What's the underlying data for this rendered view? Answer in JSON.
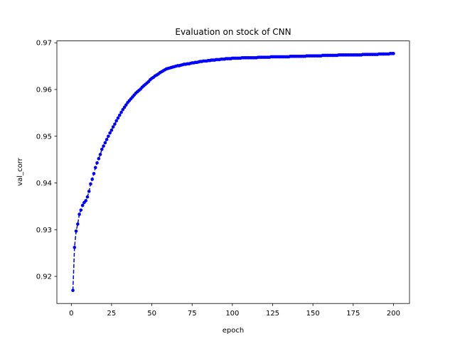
{
  "chart_data": {
    "type": "line",
    "title": "Evaluation on stock of CNN",
    "xlabel": "epoch",
    "ylabel": "val_corr",
    "x": [
      1,
      2,
      3,
      4,
      5,
      6,
      7,
      8,
      9,
      10,
      11,
      12,
      13,
      14,
      15,
      16,
      17,
      18,
      19,
      20,
      21,
      22,
      23,
      24,
      25,
      26,
      27,
      28,
      29,
      30,
      31,
      32,
      33,
      34,
      35,
      36,
      37,
      38,
      39,
      40,
      41,
      42,
      43,
      44,
      45,
      46,
      47,
      48,
      49,
      50,
      51,
      52,
      53,
      54,
      55,
      56,
      57,
      58,
      59,
      60,
      61,
      62,
      63,
      64,
      65,
      66,
      67,
      68,
      69,
      70,
      71,
      72,
      73,
      74,
      75,
      76,
      77,
      78,
      79,
      80,
      81,
      82,
      83,
      84,
      85,
      86,
      87,
      88,
      89,
      90,
      91,
      92,
      93,
      94,
      95,
      96,
      97,
      98,
      99,
      100,
      101,
      102,
      103,
      104,
      105,
      106,
      107,
      108,
      109,
      110,
      111,
      112,
      113,
      114,
      115,
      116,
      117,
      118,
      119,
      120,
      121,
      122,
      123,
      124,
      125,
      126,
      127,
      128,
      129,
      130,
      131,
      132,
      133,
      134,
      135,
      136,
      137,
      138,
      139,
      140,
      141,
      142,
      143,
      144,
      145,
      146,
      147,
      148,
      149,
      150,
      151,
      152,
      153,
      154,
      155,
      156,
      157,
      158,
      159,
      160,
      161,
      162,
      163,
      164,
      165,
      166,
      167,
      168,
      169,
      170,
      171,
      172,
      173,
      174,
      175,
      176,
      177,
      178,
      179,
      180,
      181,
      182,
      183,
      184,
      185,
      186,
      187,
      188,
      189,
      190,
      191,
      192,
      193,
      194,
      195,
      196,
      197,
      198,
      199,
      200
    ],
    "series": [
      {
        "color": "#0000ff",
        "linestyle": "dashed",
        "marker": "o",
        "values": [
          0.917,
          0.9262,
          0.9297,
          0.9312,
          0.9333,
          0.9342,
          0.9352,
          0.9358,
          0.9362,
          0.937,
          0.9382,
          0.9398,
          0.9408,
          0.942,
          0.9433,
          0.9443,
          0.9452,
          0.9461,
          0.9472,
          0.9479,
          0.9486,
          0.9493,
          0.95,
          0.9507,
          0.9513,
          0.952,
          0.9526,
          0.9533,
          0.9539,
          0.9545,
          0.9551,
          0.9557,
          0.9562,
          0.9567,
          0.9572,
          0.9576,
          0.958,
          0.9584,
          0.9588,
          0.9592,
          0.9595,
          0.9598,
          0.9601,
          0.9605,
          0.9608,
          0.9611,
          0.9614,
          0.9617,
          0.9621,
          0.9624,
          0.9626,
          0.9629,
          0.9631,
          0.9633,
          0.9636,
          0.9638,
          0.964,
          0.9642,
          0.9644,
          0.9645,
          0.9646,
          0.9647,
          0.9648,
          0.9649,
          0.965,
          0.9651,
          0.9651,
          0.9652,
          0.9653,
          0.9654,
          0.9654,
          0.9655,
          0.9655,
          0.9656,
          0.9657,
          0.9657,
          0.9658,
          0.9658,
          0.9659,
          0.966,
          0.966,
          0.9661,
          0.9661,
          0.9661,
          0.9662,
          0.9662,
          0.9663,
          0.9663,
          0.9663,
          0.9664,
          0.9664,
          0.9664,
          0.9665,
          0.9665,
          0.9665,
          0.9666,
          0.9666,
          0.9666,
          0.9666,
          0.9667,
          0.9667,
          0.9667,
          0.9667,
          0.9667,
          0.9667,
          0.9668,
          0.9668,
          0.9668,
          0.9668,
          0.9668,
          0.9668,
          0.9668,
          0.9668,
          0.9668,
          0.9668,
          0.9669,
          0.9669,
          0.9669,
          0.9669,
          0.9669,
          0.9669,
          0.9669,
          0.9669,
          0.967,
          0.967,
          0.967,
          0.967,
          0.967,
          0.967,
          0.967,
          0.967,
          0.967,
          0.967,
          0.967,
          0.967,
          0.9671,
          0.9671,
          0.9671,
          0.9671,
          0.9671,
          0.9671,
          0.9671,
          0.9671,
          0.9671,
          0.9671,
          0.9672,
          0.9672,
          0.9672,
          0.9672,
          0.9672,
          0.9672,
          0.9672,
          0.9672,
          0.9672,
          0.9672,
          0.9673,
          0.9673,
          0.9673,
          0.9673,
          0.9673,
          0.9673,
          0.9673,
          0.9673,
          0.9673,
          0.9673,
          0.9674,
          0.9674,
          0.9674,
          0.9674,
          0.9674,
          0.9674,
          0.9674,
          0.9674,
          0.9674,
          0.9674,
          0.9674,
          0.9674,
          0.9674,
          0.9674,
          0.9674,
          0.9675,
          0.9675,
          0.9675,
          0.9675,
          0.9675,
          0.9675,
          0.9675,
          0.9675,
          0.9675,
          0.9675,
          0.9676,
          0.9676,
          0.9676,
          0.9676,
          0.9676,
          0.9676,
          0.9676,
          0.9677,
          0.9677,
          0.9677
        ]
      }
    ],
    "xlim": [
      -8.95,
      209.95
    ],
    "xticks": [
      0,
      25,
      50,
      75,
      100,
      125,
      150,
      175,
      200
    ],
    "ylim": [
      0.9142,
      0.9704
    ],
    "yticks": [
      0.92,
      0.93,
      0.94,
      0.95,
      0.96,
      0.97
    ]
  }
}
